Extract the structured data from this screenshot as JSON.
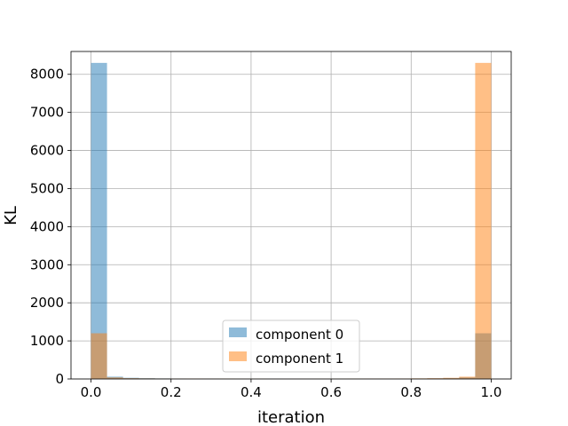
{
  "chart_data": {
    "type": "bar",
    "subtype": "overlapping-histogram",
    "title": "",
    "xlabel": "iteration",
    "ylabel": "KL",
    "xlim": [
      -0.05,
      1.05
    ],
    "ylim": [
      0,
      8600
    ],
    "xticks": [
      0.0,
      0.2,
      0.4,
      0.6,
      0.8,
      1.0
    ],
    "xtick_labels": [
      "0.0",
      "0.2",
      "0.4",
      "0.6",
      "0.8",
      "1.0"
    ],
    "yticks": [
      0,
      1000,
      2000,
      3000,
      4000,
      5000,
      6000,
      7000,
      8000
    ],
    "ytick_labels": [
      "0",
      "1000",
      "2000",
      "3000",
      "4000",
      "5000",
      "6000",
      "7000",
      "8000"
    ],
    "grid": true,
    "legend": "lower center",
    "bin_edges": [
      0.0,
      0.04,
      0.08,
      0.12,
      0.16,
      0.2,
      0.24,
      0.28,
      0.32,
      0.36,
      0.4,
      0.44,
      0.48,
      0.52,
      0.56,
      0.6,
      0.64,
      0.68,
      0.72,
      0.76,
      0.8,
      0.84,
      0.88,
      0.92,
      0.96,
      1.0
    ],
    "series": [
      {
        "name": "component 0",
        "color": "#1f77b4",
        "values": [
          8300,
          60,
          30,
          20,
          15,
          12,
          10,
          10,
          8,
          5,
          5,
          5,
          4,
          4,
          5,
          5,
          8,
          8,
          10,
          10,
          12,
          15,
          20,
          40,
          1200
        ]
      },
      {
        "name": "component 1",
        "color": "#ff7f0e",
        "values": [
          1200,
          40,
          20,
          15,
          12,
          10,
          10,
          8,
          8,
          5,
          5,
          4,
          4,
          5,
          5,
          5,
          8,
          10,
          10,
          12,
          15,
          20,
          30,
          60,
          8300
        ]
      }
    ]
  }
}
